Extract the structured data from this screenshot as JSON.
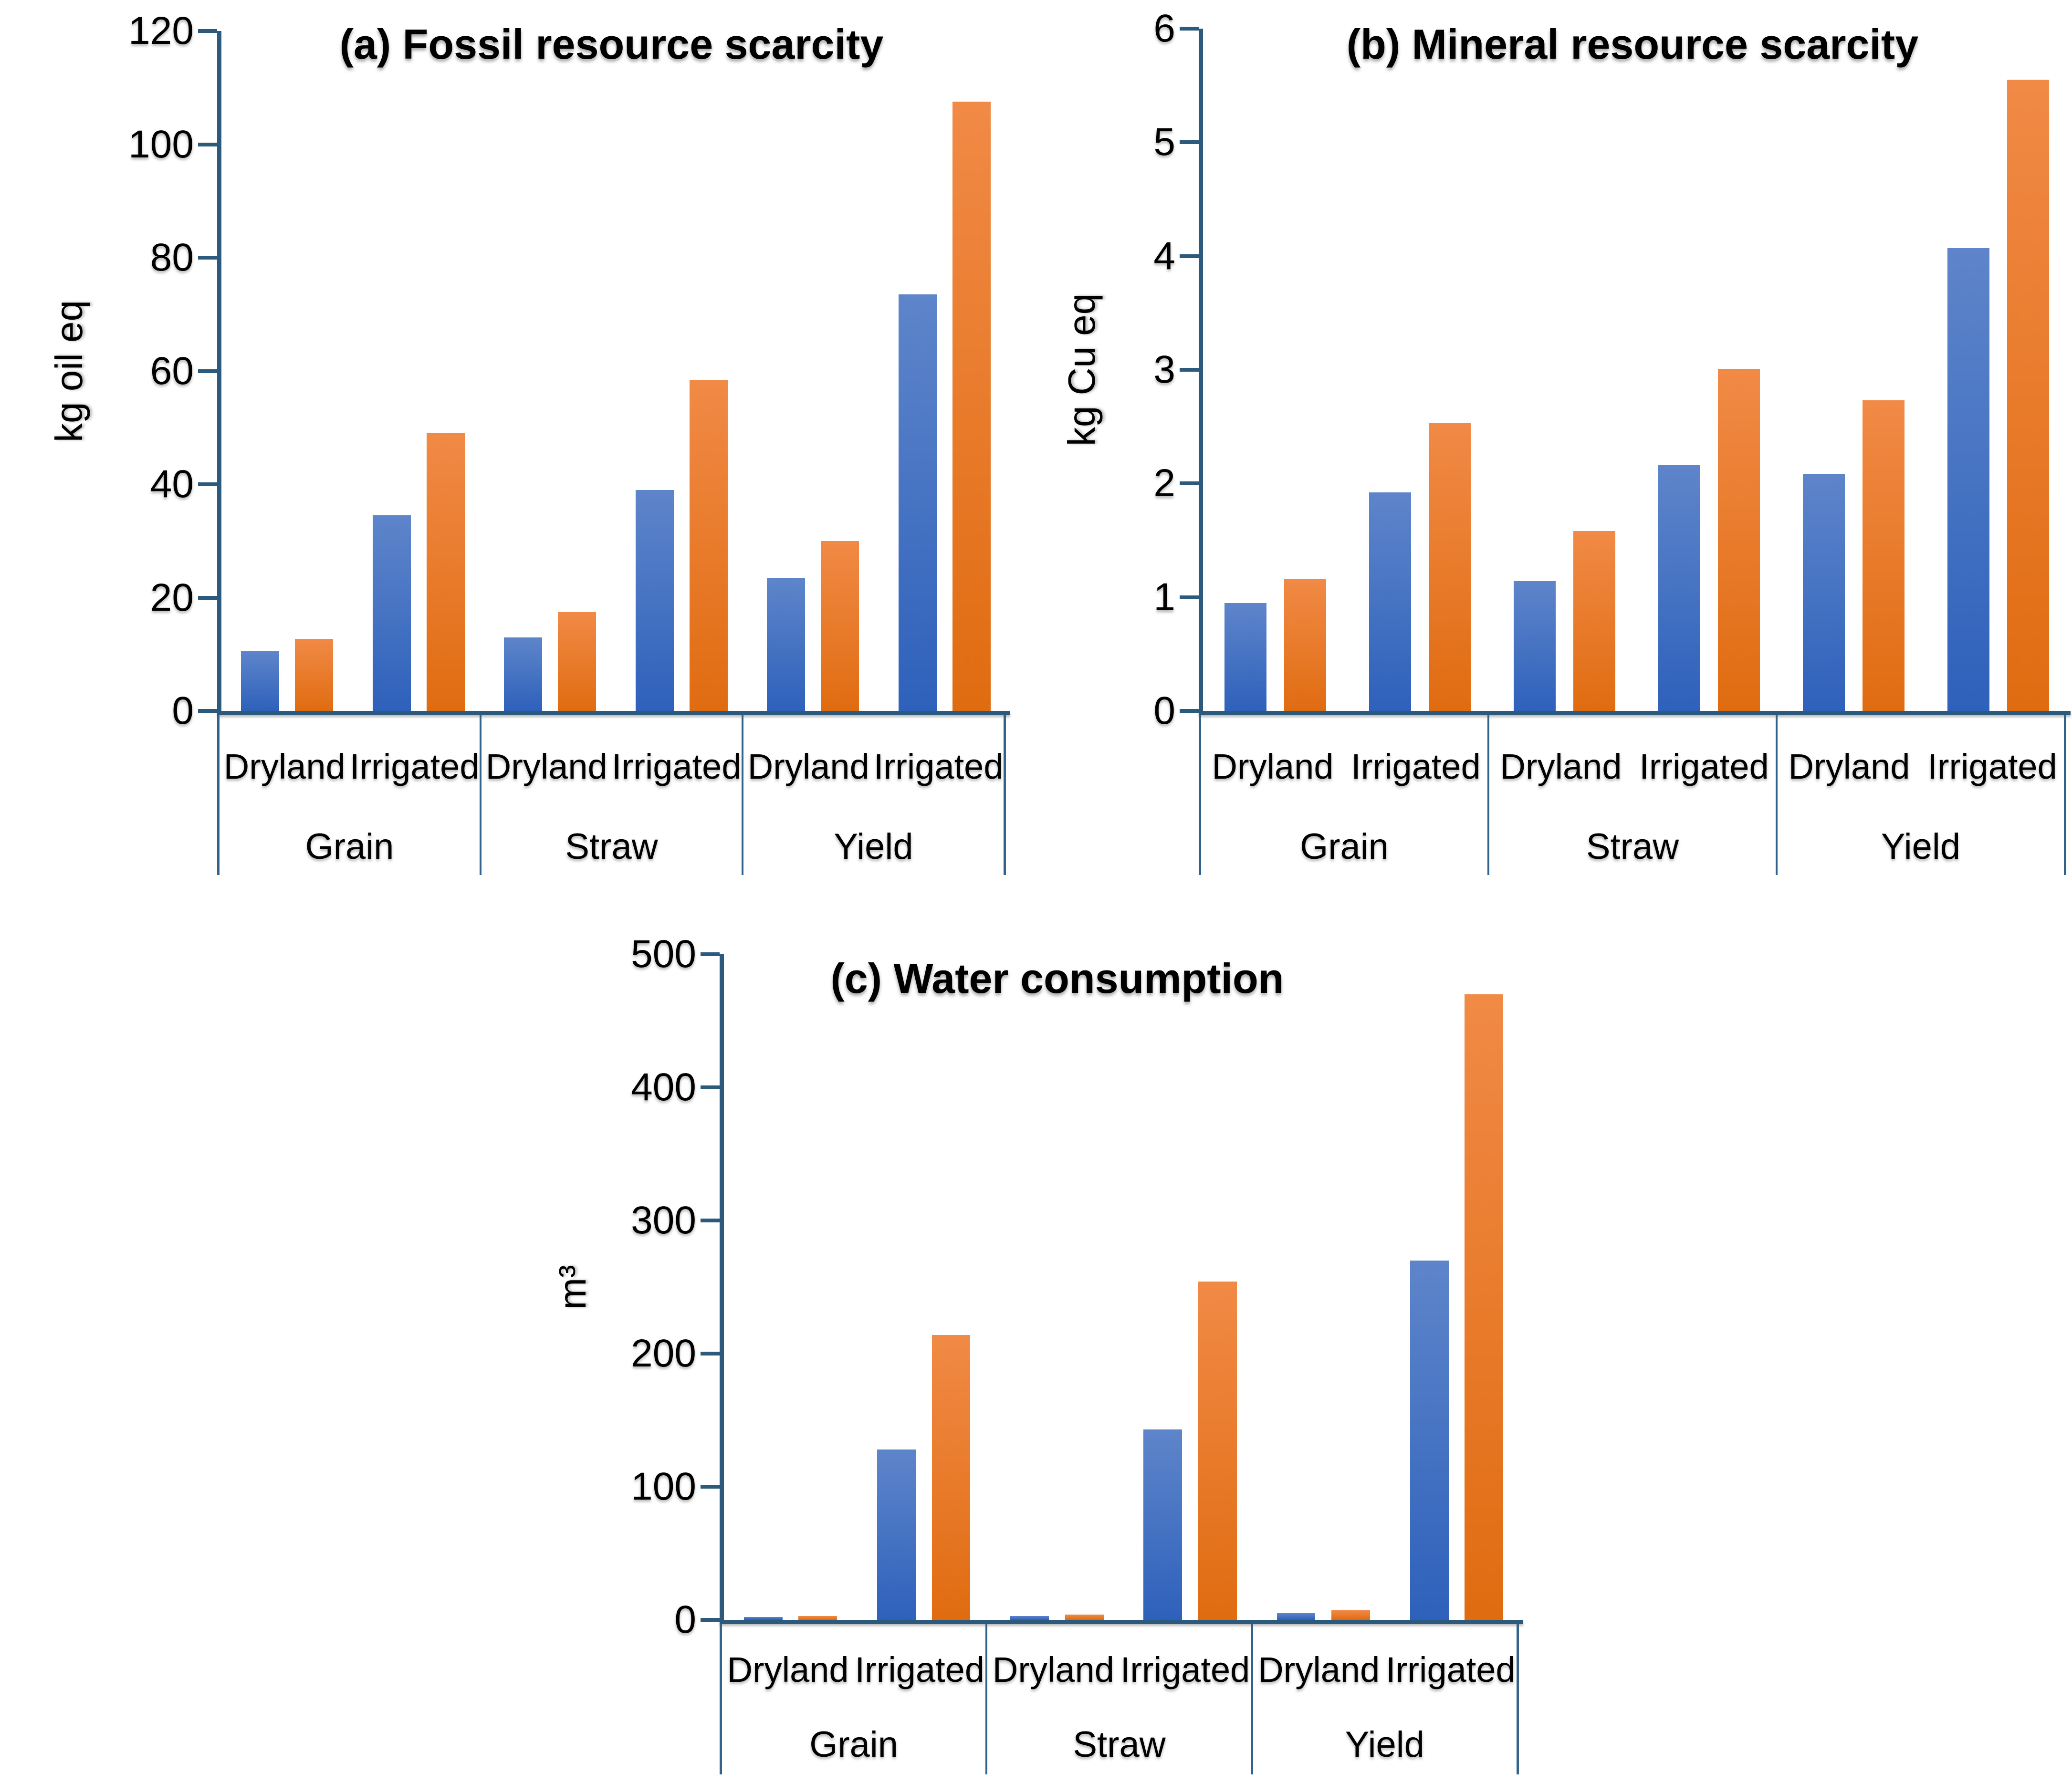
{
  "colors": {
    "axis": "#2B5A7C",
    "category_line": "#33628A",
    "bar_blue_top": "#5E85CA",
    "bar_blue_bottom": "#2E61BB",
    "bar_orange_top": "#F18A46",
    "bar_orange_bottom": "#E06C11",
    "text": "#000000",
    "background": "#FFFFFF"
  },
  "chart_data": [
    {
      "panel": "a",
      "type": "bar",
      "title": "(a) Fossil resource scarcity",
      "xlabel": "",
      "ylabel": "kg oil eq",
      "ylim": [
        0,
        120
      ],
      "yticks": [
        0,
        20,
        40,
        60,
        80,
        100,
        120
      ],
      "grid": false,
      "legend": "none",
      "groups": [
        "Grain",
        "Straw",
        "Yield"
      ],
      "subcategories": [
        "Dryland",
        "Irrigated"
      ],
      "categories": [
        "Grain Dryland",
        "Grain Irrigated",
        "Straw Dryland",
        "Straw Irrigated",
        "Yield Dryland",
        "Yield Irrigated"
      ],
      "series": [
        {
          "name": "blue",
          "values": [
            10.5,
            34.5,
            13,
            39,
            23.5,
            73.5
          ]
        },
        {
          "name": "orange",
          "values": [
            12.7,
            49,
            17.4,
            58.4,
            30,
            107.5
          ]
        }
      ]
    },
    {
      "panel": "b",
      "type": "bar",
      "title": "(b) Mineral resource scarcity",
      "xlabel": "",
      "ylabel": "kg Cu eq",
      "ylim": [
        0,
        6
      ],
      "yticks": [
        0,
        1,
        2,
        3,
        4,
        5,
        6
      ],
      "grid": false,
      "legend": "none",
      "groups": [
        "Grain",
        "Straw",
        "Yield"
      ],
      "subcategories": [
        "Dryland",
        "Irrigated"
      ],
      "categories": [
        "Grain Dryland",
        "Grain Irrigated",
        "Straw Dryland",
        "Straw Irrigated",
        "Yield Dryland",
        "Yield Irrigated"
      ],
      "series": [
        {
          "name": "blue",
          "values": [
            0.95,
            1.92,
            1.14,
            2.16,
            2.08,
            4.07
          ]
        },
        {
          "name": "orange",
          "values": [
            1.16,
            2.53,
            1.58,
            3.01,
            2.73,
            5.55
          ]
        }
      ]
    },
    {
      "panel": "c",
      "type": "bar",
      "title": "(c) Water consumption",
      "xlabel": "",
      "ylabel": "m³",
      "ylim": [
        0,
        500
      ],
      "yticks": [
        0,
        100,
        200,
        300,
        400,
        500
      ],
      "grid": false,
      "legend": "none",
      "groups": [
        "Grain",
        "Straw",
        "Yield"
      ],
      "subcategories": [
        "Dryland",
        "Irrigated"
      ],
      "categories": [
        "Grain Dryland",
        "Grain Irrigated",
        "Straw Dryland",
        "Straw Irrigated",
        "Yield Dryland",
        "Yield Irrigated"
      ],
      "series": [
        {
          "name": "blue",
          "values": [
            2,
            128,
            3,
            143,
            5,
            270
          ]
        },
        {
          "name": "orange",
          "values": [
            3,
            214,
            4,
            254,
            7,
            470
          ]
        }
      ]
    }
  ]
}
